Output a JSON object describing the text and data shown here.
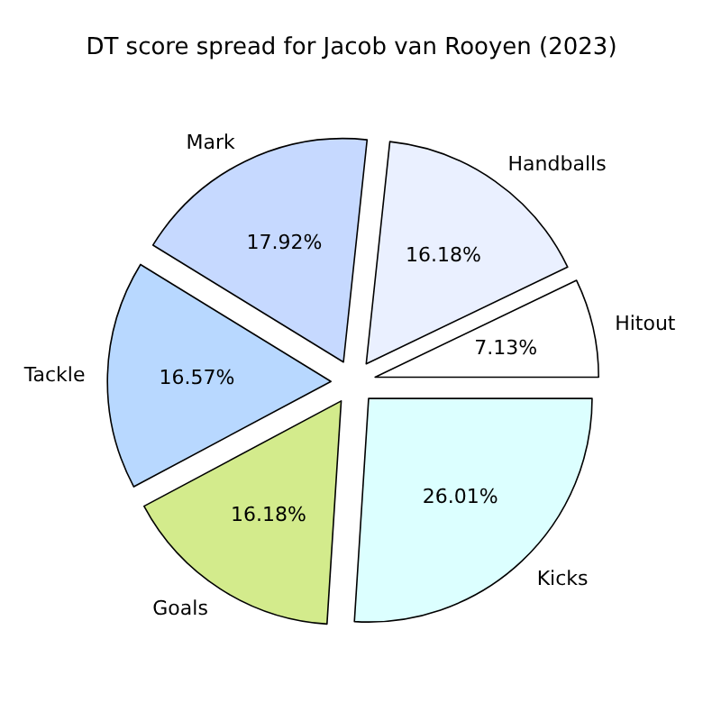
{
  "chart_data": {
    "type": "pie",
    "title": "DT score spread for Jacob van Rooyen (2023)",
    "categories": [
      "Hitout",
      "Handballs",
      "Mark",
      "Tackle",
      "Goals",
      "Kicks"
    ],
    "values": [
      7.13,
      16.18,
      17.92,
      16.57,
      16.18,
      26.01
    ],
    "value_labels": [
      "7.13%",
      "16.18%",
      "17.92%",
      "16.57%",
      "16.18%",
      "26.01%"
    ],
    "colors": [
      "#ffffff",
      "#eaf0ff",
      "#c6d9ff",
      "#b8d8ff",
      "#d3eb8c",
      "#dcffff"
    ]
  }
}
